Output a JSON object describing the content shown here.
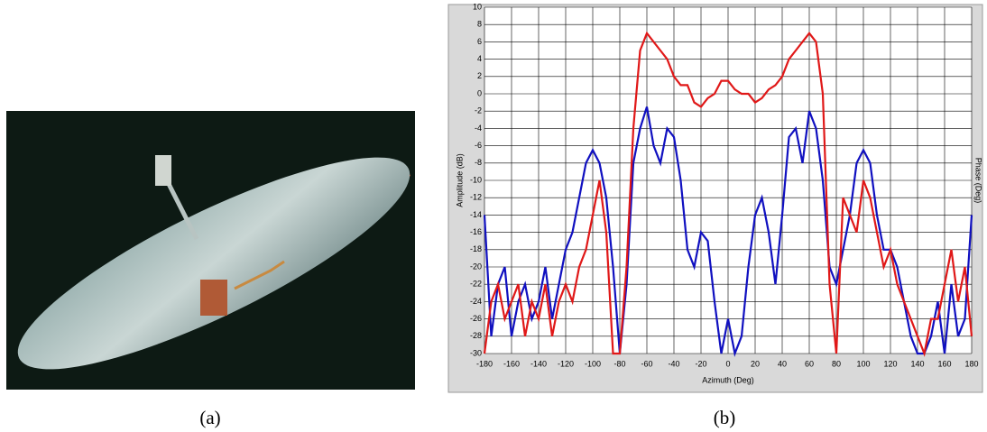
{
  "captions": [
    "(a)",
    "(b)"
  ],
  "chart_data": {
    "type": "line",
    "xlabel": "Azimuth (Deg)",
    "ylabel": "Amplitude (dB)",
    "y2label": "Phase (Deg)",
    "x": [
      -180,
      -175,
      -170,
      -165,
      -160,
      -155,
      -150,
      -145,
      -140,
      -135,
      -130,
      -125,
      -120,
      -115,
      -110,
      -105,
      -100,
      -95,
      -90,
      -85,
      -80,
      -75,
      -70,
      -65,
      -60,
      -55,
      -50,
      -45,
      -40,
      -35,
      -30,
      -25,
      -20,
      -15,
      -10,
      -5,
      0,
      5,
      10,
      15,
      20,
      25,
      30,
      35,
      40,
      45,
      50,
      55,
      60,
      65,
      70,
      75,
      80,
      85,
      90,
      95,
      100,
      105,
      110,
      115,
      120,
      125,
      130,
      135,
      140,
      145,
      150,
      155,
      160,
      165,
      170,
      175,
      180
    ],
    "series": [
      {
        "color": "#1010c0",
        "values": [
          -14,
          -28,
          -22,
          -20,
          -28,
          -24,
          -22,
          -26,
          -24,
          -20,
          -26,
          -22,
          -18,
          -16,
          -12,
          -8,
          -6.5,
          -8,
          -12,
          -20,
          -30,
          -22,
          -8,
          -4,
          -1.5,
          -6,
          -8,
          -4,
          -5,
          -10,
          -18,
          -20,
          -16,
          -17,
          -24,
          -30,
          -26,
          -30,
          -28,
          -20,
          -14,
          -12,
          -16,
          -22,
          -14,
          -5,
          -4,
          -8,
          -2,
          -4,
          -10,
          -20,
          -22,
          -18,
          -14,
          -8,
          -6.5,
          -8,
          -14,
          -18,
          -18,
          -20,
          -24,
          -28,
          -30,
          -30,
          -28,
          -24,
          -30,
          -22,
          -28,
          -26,
          -14
        ]
      },
      {
        "color": "#e01818",
        "values": [
          -30,
          -24,
          -22,
          -26,
          -24,
          -22,
          -28,
          -24,
          -26,
          -22,
          -28,
          -24,
          -22,
          -24,
          -20,
          -18,
          -14,
          -10,
          -16,
          -30,
          -30,
          -20,
          -4,
          5,
          7,
          6,
          5,
          4,
          2,
          1,
          1,
          -1,
          -1.5,
          -0.5,
          0,
          1.5,
          1.5,
          0.5,
          0,
          0,
          -1,
          -0.5,
          0.5,
          1,
          2,
          4,
          5,
          6,
          7,
          6,
          0,
          -22,
          -30,
          -12,
          -14,
          -16,
          -10,
          -12,
          -16,
          -20,
          -18,
          -22,
          -24,
          -26,
          -28,
          -30,
          -26,
          -26,
          -22,
          -18,
          -24,
          -20,
          -28
        ]
      }
    ],
    "xlim": [
      -180,
      180
    ],
    "xticks": [
      -180,
      -160,
      -140,
      -120,
      -100,
      -80,
      -60,
      -40,
      -20,
      0,
      20,
      40,
      60,
      80,
      100,
      120,
      140,
      160,
      180
    ],
    "ylim": [
      -30,
      10
    ],
    "yticks": [
      -30,
      -28,
      -26,
      -24,
      -22,
      -20,
      -18,
      -16,
      -14,
      -12,
      -10,
      -8,
      -6,
      -4,
      -2,
      0,
      2,
      4,
      6,
      8,
      10
    ],
    "grid": true
  }
}
